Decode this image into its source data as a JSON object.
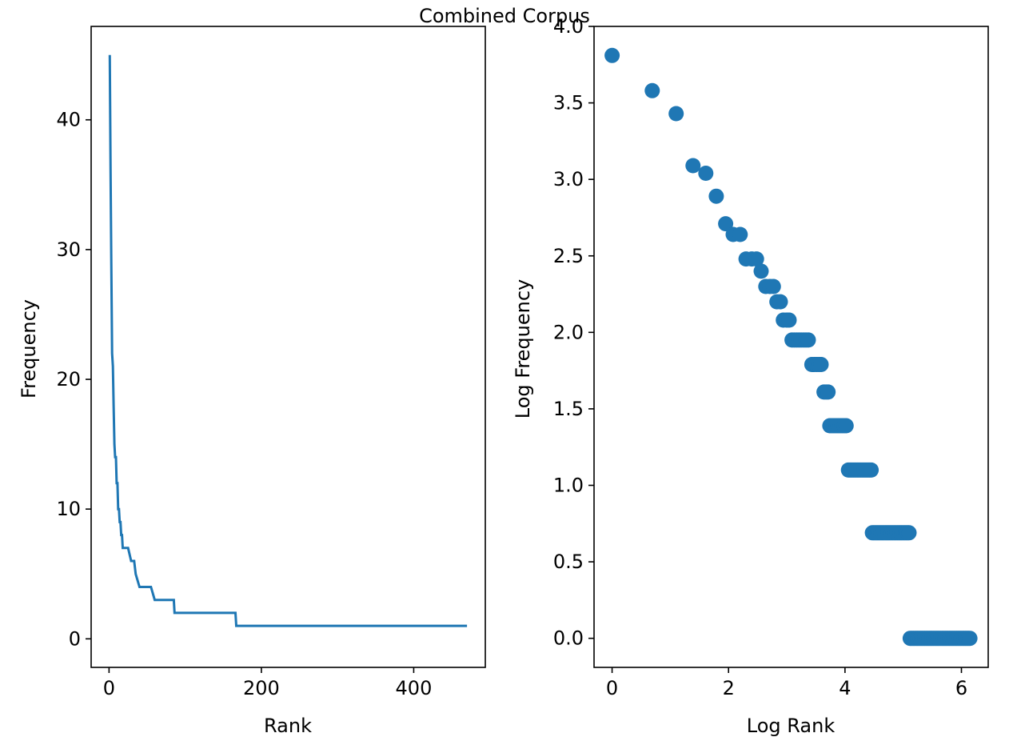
{
  "figure": {
    "title": "Combined Corpus"
  },
  "chart_data": [
    {
      "type": "line",
      "title": "",
      "xlabel": "Rank",
      "ylabel": "Frequency",
      "xlim": [
        -23.5,
        494
      ],
      "ylim": [
        -2.2,
        47.2
      ],
      "xticks": [
        0,
        200,
        400
      ],
      "xtick_labels": [
        "0",
        "200",
        "400"
      ],
      "yticks": [
        0,
        10,
        20,
        30,
        40
      ],
      "ytick_labels": [
        "0",
        "10",
        "20",
        "30",
        "40"
      ],
      "grid": false,
      "color": "#1f77b4",
      "series": [
        {
          "x": [
            1,
            2,
            3,
            4,
            5,
            6,
            7,
            8,
            9,
            10,
            11,
            12,
            13,
            14,
            15,
            16,
            17,
            18,
            19,
            20,
            22,
            25,
            29,
            33,
            35,
            40,
            55,
            60,
            85,
            86,
            165,
            166,
            167,
            470
          ],
          "y": [
            45,
            36,
            29,
            22,
            21,
            18,
            15,
            14,
            14,
            12,
            12,
            10,
            10,
            9,
            9,
            8,
            8,
            7,
            7,
            7,
            7,
            7,
            6,
            6,
            5,
            4,
            4,
            3,
            3,
            2,
            2,
            2,
            1,
            1
          ]
        }
      ]
    },
    {
      "type": "scatter",
      "title": "",
      "xlabel": "Log Rank",
      "ylabel": "Log Frequency",
      "xlim": [
        -0.31,
        6.46
      ],
      "ylim": [
        -0.19,
        4.0
      ],
      "xticks": [
        0,
        2,
        4,
        6
      ],
      "xtick_labels": [
        "0",
        "2",
        "4",
        "6"
      ],
      "yticks": [
        0.0,
        0.5,
        1.0,
        1.5,
        2.0,
        2.5,
        3.0,
        3.5,
        4.0
      ],
      "ytick_labels": [
        "0.0",
        "0.5",
        "1.0",
        "1.5",
        "2.0",
        "2.5",
        "3.0",
        "3.5",
        "4.0"
      ],
      "grid": false,
      "color": "#1f77b4",
      "points": [
        [
          0,
          3.81
        ],
        [
          0.69,
          3.58
        ],
        [
          1.1,
          3.43
        ],
        [
          1.39,
          3.09
        ],
        [
          1.61,
          3.04
        ],
        [
          1.79,
          2.89
        ],
        [
          1.95,
          2.71
        ],
        [
          2.08,
          2.64
        ],
        [
          2.2,
          2.64
        ],
        [
          2.3,
          2.48
        ],
        [
          2.4,
          2.48
        ],
        [
          2.48,
          2.48
        ],
        [
          2.56,
          2.4
        ],
        [
          2.64,
          2.3
        ],
        [
          2.71,
          2.3
        ],
        [
          2.77,
          2.3
        ],
        [
          2.83,
          2.2
        ],
        [
          2.89,
          2.2
        ],
        [
          2.94,
          2.08
        ],
        [
          3.0,
          2.08
        ],
        [
          3.04,
          2.08
        ]
      ],
      "runs": [
        {
          "y": 1.95,
          "x_start": 3.09,
          "x_end": 3.4,
          "step": 0.04
        },
        {
          "y": 1.79,
          "x_start": 3.43,
          "x_end": 3.61,
          "step": 0.04
        },
        {
          "y": 1.61,
          "x_start": 3.64,
          "x_end": 3.71,
          "step": 0.035
        },
        {
          "y": 1.39,
          "x_start": 3.74,
          "x_end": 4.04,
          "step": 0.035
        },
        {
          "y": 1.1,
          "x_start": 4.06,
          "x_end": 4.45,
          "step": 0.03
        },
        {
          "y": 0.69,
          "x_start": 4.47,
          "x_end": 5.11,
          "step": 0.03
        },
        {
          "y": 0.0,
          "x_start": 5.12,
          "x_end": 6.15,
          "step": 0.025
        }
      ]
    }
  ]
}
